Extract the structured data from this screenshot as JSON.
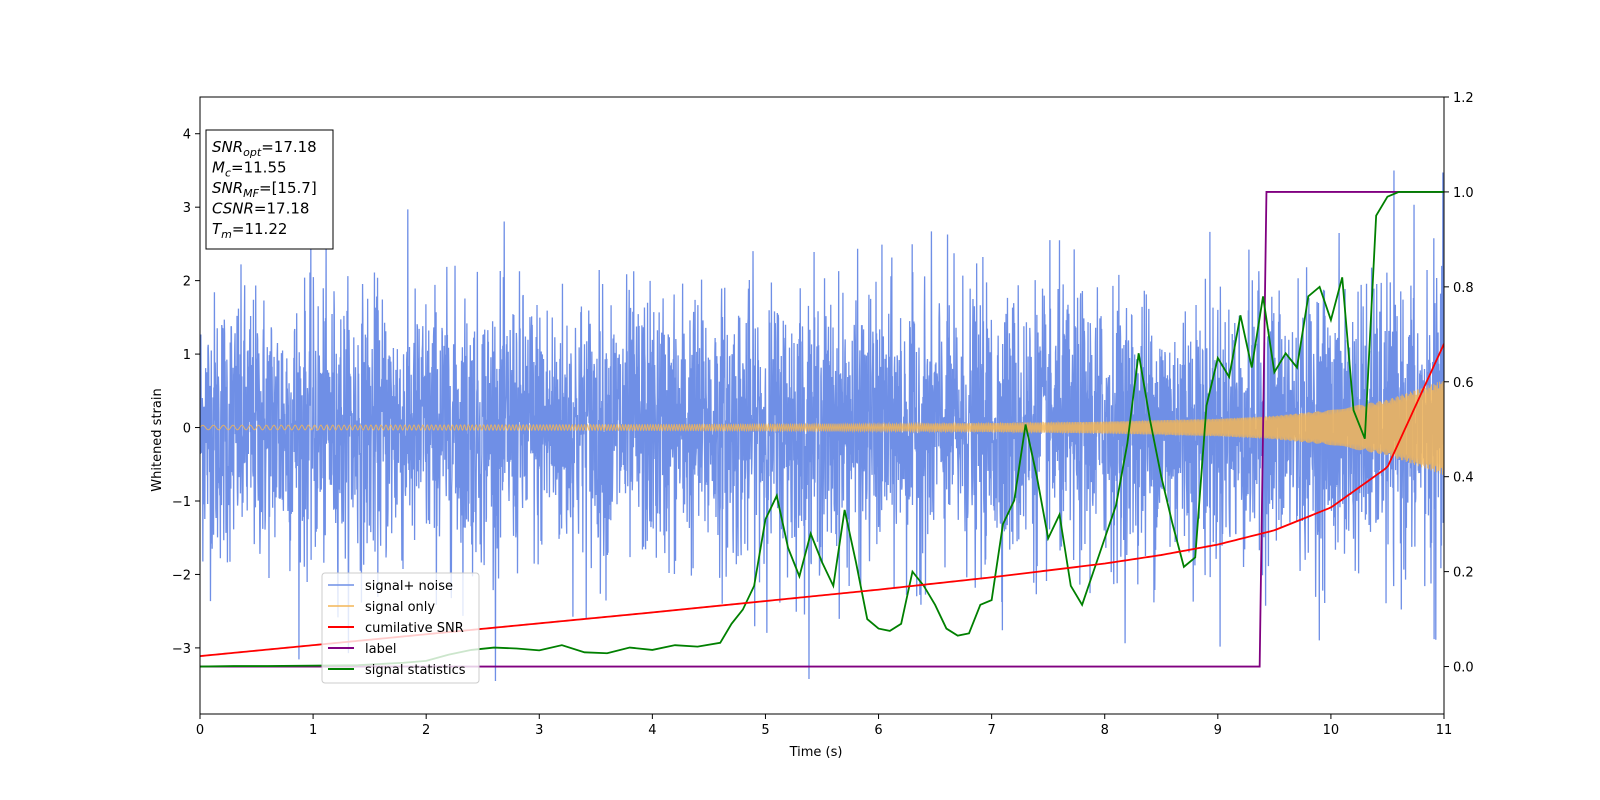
{
  "chart_data": {
    "type": "line",
    "title": "",
    "xlabel": "Time (s)",
    "ylabel": "Whitened strain",
    "xlim": [
      0,
      11
    ],
    "ylim_left": [
      -3.9,
      4.5
    ],
    "ylim_right": [
      -0.1,
      1.2
    ],
    "x_ticks": [
      "0",
      "1",
      "2",
      "3",
      "4",
      "5",
      "6",
      "7",
      "8",
      "9",
      "10",
      "11"
    ],
    "y_left_ticks": [
      "−3",
      "−2",
      "−1",
      "0",
      "1",
      "2",
      "3",
      "4"
    ],
    "y_right_ticks": [
      "0.0",
      "0.2",
      "0.4",
      "0.6",
      "0.8",
      "1.0",
      "1.2"
    ],
    "grid": false,
    "legend_position": "lower-left",
    "info_box": [
      {
        "sym": "SNR",
        "sub": "opt",
        "rest": "=17.18"
      },
      {
        "sym": "M",
        "sub": "c",
        "rest": "=11.55"
      },
      {
        "sym": "SNR",
        "sub": "MF",
        "rest": "=[15.7]"
      },
      {
        "sym": "CSNR",
        "sub": "",
        "rest": "=17.18"
      },
      {
        "sym": "T",
        "sub": "m",
        "rest": "=11.22"
      }
    ],
    "colors": {
      "noise": "#6f8fe6",
      "signal": "#f4b656",
      "csnr": "#ff0000",
      "label": "#800080",
      "stat": "#008000"
    },
    "series": [
      {
        "name": "signal+ noise",
        "axis": "left",
        "description_values": {
          "noise_sigma": 0.9,
          "noise_max": 3.5,
          "noise_min": -3.45
        }
      },
      {
        "name": "signal only",
        "axis": "left",
        "envelope_x": [
          0,
          2,
          4,
          6,
          7,
          8,
          9,
          9.5,
          10,
          10.5,
          11
        ],
        "envelope_amp": [
          0.03,
          0.035,
          0.04,
          0.05,
          0.06,
          0.08,
          0.12,
          0.16,
          0.24,
          0.38,
          0.65
        ]
      },
      {
        "name": "cumilative SNR",
        "axis": "right",
        "x": [
          0,
          1,
          2,
          3,
          4,
          5,
          6,
          7,
          8,
          8.5,
          9,
          9.5,
          10,
          10.5,
          11
        ],
        "y": [
          0.022,
          0.045,
          0.068,
          0.091,
          0.114,
          0.138,
          0.162,
          0.188,
          0.217,
          0.235,
          0.257,
          0.287,
          0.335,
          0.42,
          0.68
        ]
      },
      {
        "name": "label",
        "axis": "right",
        "x": [
          0,
          9.37,
          9.43,
          11
        ],
        "y": [
          0,
          0,
          1,
          1
        ]
      },
      {
        "name": "signal statistics",
        "axis": "right",
        "x": [
          0,
          0.3,
          0.6,
          1.0,
          1.4,
          1.8,
          2.0,
          2.2,
          2.4,
          2.6,
          2.8,
          3.0,
          3.2,
          3.4,
          3.6,
          3.8,
          4.0,
          4.2,
          4.4,
          4.6,
          4.7,
          4.8,
          4.9,
          5.0,
          5.1,
          5.2,
          5.3,
          5.4,
          5.5,
          5.6,
          5.7,
          5.8,
          5.9,
          6.0,
          6.1,
          6.2,
          6.3,
          6.4,
          6.5,
          6.6,
          6.7,
          6.8,
          6.9,
          7.0,
          7.1,
          7.2,
          7.3,
          7.4,
          7.5,
          7.6,
          7.7,
          7.8,
          7.9,
          8.0,
          8.1,
          8.2,
          8.3,
          8.4,
          8.5,
          8.6,
          8.7,
          8.8,
          8.9,
          9.0,
          9.1,
          9.2,
          9.3,
          9.4,
          9.5,
          9.6,
          9.7,
          9.8,
          9.9,
          10.0,
          10.1,
          10.2,
          10.3,
          10.4,
          10.5,
          10.6,
          10.7,
          10.8,
          10.9,
          11.0
        ],
        "y": [
          0.0,
          0.001,
          0.001,
          0.002,
          0.003,
          0.008,
          0.012,
          0.025,
          0.035,
          0.04,
          0.038,
          0.034,
          0.045,
          0.03,
          0.028,
          0.04,
          0.035,
          0.045,
          0.042,
          0.05,
          0.09,
          0.12,
          0.17,
          0.31,
          0.36,
          0.25,
          0.19,
          0.28,
          0.22,
          0.17,
          0.33,
          0.22,
          0.1,
          0.08,
          0.075,
          0.09,
          0.2,
          0.17,
          0.13,
          0.08,
          0.065,
          0.07,
          0.13,
          0.14,
          0.3,
          0.35,
          0.51,
          0.4,
          0.27,
          0.32,
          0.17,
          0.13,
          0.2,
          0.27,
          0.34,
          0.47,
          0.66,
          0.52,
          0.4,
          0.3,
          0.21,
          0.23,
          0.55,
          0.65,
          0.61,
          0.74,
          0.63,
          0.78,
          0.62,
          0.66,
          0.63,
          0.78,
          0.8,
          0.73,
          0.82,
          0.54,
          0.48,
          0.95,
          0.99,
          1.0,
          1.0,
          1.0,
          1.0,
          1.0
        ]
      }
    ]
  }
}
